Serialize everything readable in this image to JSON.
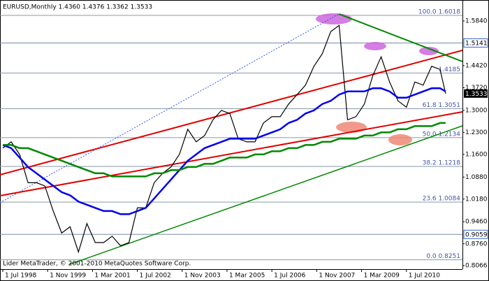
{
  "chart_data": {
    "type": "line",
    "title": "EURUSD,Monthly  1.4360 1.4376 1.3362 1.3533",
    "footer": "Lider MetaTrader, © 2001-2010 MetaQuotes Software Corp.",
    "x": [
      "Jul 1998",
      "Oct 1998",
      "Jan 1999",
      "Apr 1999",
      "Jul 1999",
      "Oct 1999",
      "Jan 2000",
      "Apr 2000",
      "Jul 2000",
      "Oct 2000",
      "Jan 2001",
      "Apr 2001",
      "Jul 2001",
      "Oct 2001",
      "Jan 2002",
      "Apr 2002",
      "Jul 2002",
      "Oct 2002",
      "Jan 2003",
      "Apr 2003",
      "Jul 2003",
      "Oct 2003",
      "Jan 2004",
      "Apr 2004",
      "Jul 2004",
      "Oct 2004",
      "Jan 2005",
      "Apr 2005",
      "Jul 2005",
      "Oct 2005",
      "Jan 2006",
      "Apr 2006",
      "Jul 2006",
      "Oct 2006",
      "Jan 2007",
      "Apr 2007",
      "Jul 2007",
      "Oct 2007",
      "Jan 2008",
      "Apr 2008",
      "Jul 2008",
      "Oct 2008",
      "Jan 2009",
      "Apr 2009",
      "Jul 2009",
      "Oct 2009",
      "Jan 2010",
      "Apr 2010",
      "Jul 2010",
      "Oct 2010",
      "Jan 2011",
      "Apr 2011",
      "Jul 2011",
      "Sep 2011"
    ],
    "series": [
      {
        "color": "#000000",
        "values": [
          1.18,
          1.2,
          1.16,
          1.07,
          1.07,
          1.06,
          0.98,
          0.91,
          0.93,
          0.85,
          0.94,
          0.88,
          0.88,
          0.9,
          0.87,
          0.88,
          0.99,
          0.99,
          1.07,
          1.1,
          1.12,
          1.16,
          1.24,
          1.2,
          1.22,
          1.27,
          1.3,
          1.29,
          1.21,
          1.2,
          1.2,
          1.26,
          1.28,
          1.28,
          1.32,
          1.35,
          1.38,
          1.44,
          1.48,
          1.55,
          1.57,
          1.27,
          1.28,
          1.32,
          1.41,
          1.47,
          1.39,
          1.33,
          1.31,
          1.39,
          1.38,
          1.44,
          1.43,
          1.3533
        ]
      },
      {
        "color": "#0000ee",
        "values": [
          1.19,
          1.18,
          1.15,
          1.12,
          1.1,
          1.08,
          1.06,
          1.04,
          1.03,
          1.01,
          1.0,
          0.99,
          0.98,
          0.98,
          0.97,
          0.97,
          0.98,
          0.99,
          1.02,
          1.05,
          1.08,
          1.11,
          1.14,
          1.16,
          1.18,
          1.19,
          1.2,
          1.21,
          1.21,
          1.21,
          1.21,
          1.22,
          1.23,
          1.24,
          1.26,
          1.27,
          1.29,
          1.3,
          1.32,
          1.33,
          1.35,
          1.36,
          1.36,
          1.36,
          1.37,
          1.37,
          1.36,
          1.34,
          1.34,
          1.35,
          1.36,
          1.37,
          1.37,
          1.36
        ]
      },
      {
        "color": "#008800",
        "values": [
          1.19,
          1.19,
          1.18,
          1.18,
          1.17,
          1.16,
          1.15,
          1.14,
          1.13,
          1.12,
          1.11,
          1.1,
          1.1,
          1.09,
          1.09,
          1.09,
          1.09,
          1.09,
          1.1,
          1.1,
          1.11,
          1.11,
          1.12,
          1.12,
          1.13,
          1.13,
          1.14,
          1.15,
          1.15,
          1.15,
          1.16,
          1.16,
          1.17,
          1.17,
          1.18,
          1.18,
          1.19,
          1.19,
          1.2,
          1.2,
          1.21,
          1.21,
          1.21,
          1.22,
          1.22,
          1.23,
          1.23,
          1.24,
          1.24,
          1.25,
          1.25,
          1.25,
          1.26,
          1.26
        ]
      }
    ],
    "xlim": [
      "Jun 1998",
      "Mar 2012"
    ],
    "xticks": [
      {
        "value": "Jul 1998",
        "label": "1 Jul 1998"
      },
      {
        "value": "Nov 1999",
        "label": "1 Nov 1999"
      },
      {
        "value": "Mar 2001",
        "label": "1 Mar 2001"
      },
      {
        "value": "Jul 2002",
        "label": "1 Jul 2002"
      },
      {
        "value": "Nov 2003",
        "label": "1 Nov 2003"
      },
      {
        "value": "Mar 2005",
        "label": "1 Mar 2005"
      },
      {
        "value": "Jul 2006",
        "label": "1 Jul 2006"
      },
      {
        "value": "Nov 2007",
        "label": "1 Nov 2007"
      },
      {
        "value": "Mar 2009",
        "label": "1 Mar 2009"
      },
      {
        "value": "Jul 2010",
        "label": "1 Jul 2010"
      }
    ],
    "ylim": [
      0.7955,
      1.6506
    ],
    "yticks": [
      {
        "value": 1.584,
        "label": "1.5840"
      },
      {
        "value": 1.442,
        "label": "1.4420"
      },
      {
        "value": 1.372,
        "label": "1.3720"
      },
      {
        "value": 1.3,
        "label": "1.3000"
      },
      {
        "value": 1.23,
        "label": "1.2300"
      },
      {
        "value": 1.16,
        "label": "1.1600"
      },
      {
        "value": 1.088,
        "label": "1.0880"
      },
      {
        "value": 1.018,
        "label": "1.0180"
      },
      {
        "value": 0.946,
        "label": "0.9460"
      },
      {
        "value": 0.876,
        "label": "0.8760"
      },
      {
        "value": 0.8066,
        "label": "0.8066"
      }
    ],
    "fib_levels": [
      {
        "value": 1.6018,
        "label": "100.0 1.6018"
      },
      {
        "value": 1.4185,
        "label": "1.4185"
      },
      {
        "value": 1.3051,
        "label": "61.8 1.3051"
      },
      {
        "value": 1.2134,
        "label": "50.0 1.2134"
      },
      {
        "value": 1.1218,
        "label": "38.2 1.1218"
      },
      {
        "value": 1.0084,
        "label": "23.6 1.0084"
      },
      {
        "value": 0.8251,
        "label": "0.0 0.8251"
      }
    ],
    "price_lines": [
      {
        "value": 1.5141,
        "label": "1.5141"
      },
      {
        "value": 0.9059,
        "label": "0.9059"
      }
    ],
    "last_price": {
      "value": 1.3533,
      "label": "1.3533"
    }
  }
}
